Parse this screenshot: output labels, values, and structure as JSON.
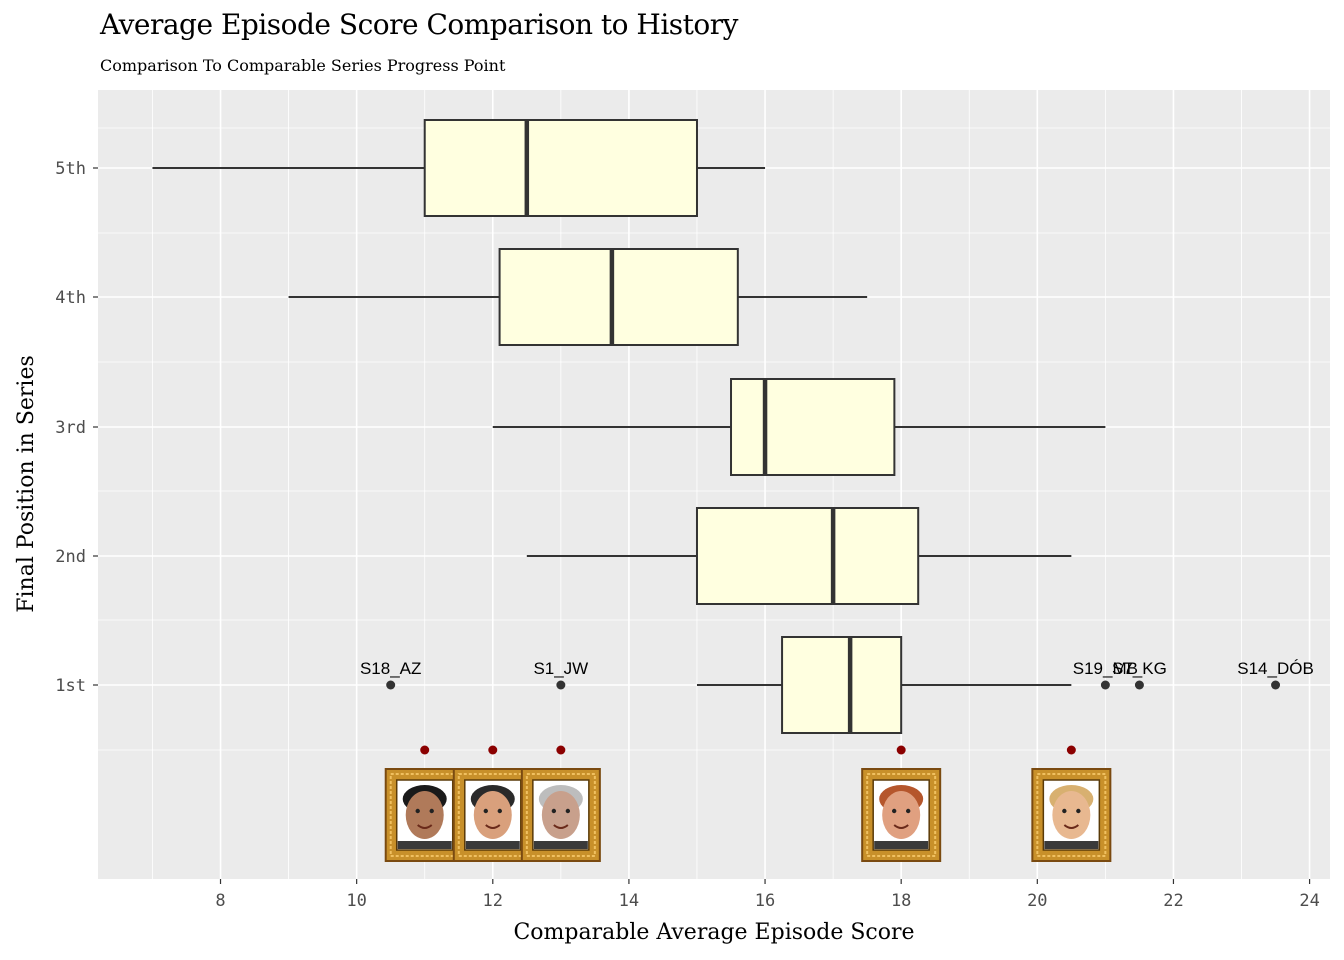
{
  "chart_data": {
    "type": "boxplot",
    "title": "Average Episode Score Comparison to History",
    "subtitle": "Comparison To Comparable Series Progress Point",
    "xlabel": "Comparable Average Episode Score",
    "ylabel": "Final Position in Series",
    "xlim": [
      6.2,
      24.3
    ],
    "x_ticks": [
      8,
      10,
      12,
      14,
      16,
      18,
      20,
      22,
      24
    ],
    "categories": [
      "5th",
      "4th",
      "3rd",
      "2nd",
      "1st"
    ],
    "boxes": [
      {
        "category": "5th",
        "whisker_low": 7,
        "q1": 11,
        "median": 12.5,
        "q3": 15,
        "whisker_high": 16
      },
      {
        "category": "4th",
        "whisker_low": 9,
        "q1": 12.1,
        "median": 13.75,
        "q3": 15.6,
        "whisker_high": 17.5
      },
      {
        "category": "3rd",
        "whisker_low": 12,
        "q1": 15.5,
        "median": 16,
        "q3": 17.9,
        "whisker_high": 21
      },
      {
        "category": "2nd",
        "whisker_low": 12.5,
        "q1": 15,
        "median": 17,
        "q3": 18.25,
        "whisker_high": 20.5
      },
      {
        "category": "1st",
        "whisker_low": 15,
        "q1": 16.25,
        "median": 17.25,
        "q3": 18,
        "whisker_high": 20.5
      }
    ],
    "outliers": [
      {
        "category": "1st",
        "x": 10.5,
        "label": "S18_AZ"
      },
      {
        "category": "1st",
        "x": 13,
        "label": "S1_JW"
      },
      {
        "category": "1st",
        "x": 21,
        "label": "S19_MB"
      },
      {
        "category": "1st",
        "x": 21.5,
        "label": "S7_KG"
      },
      {
        "category": "1st",
        "x": 23.5,
        "label": "S14_DÓB"
      }
    ],
    "current_contestants": [
      11,
      12,
      13,
      18,
      20.5
    ],
    "colors": {
      "panel": "#ebebeb",
      "grid": "#ffffff",
      "box_fill": "#ffffe0",
      "box_stroke": "#333333",
      "current_point": "#8b0000",
      "frame_gold": "#c8902a"
    },
    "portrait_icons": [
      "portrait-icon",
      "portrait-icon",
      "portrait-icon",
      "portrait-icon",
      "portrait-icon"
    ],
    "grid": true,
    "legend": "none"
  }
}
